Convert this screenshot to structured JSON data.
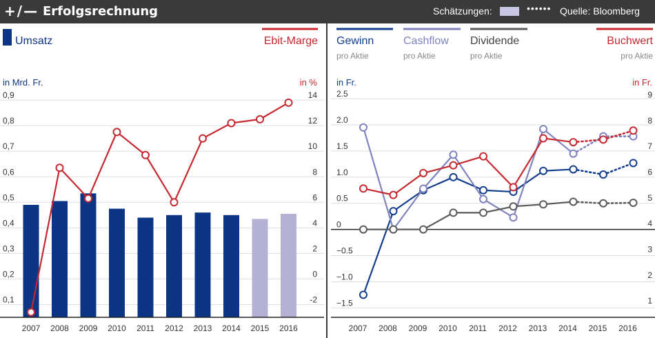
{
  "header": {
    "toggle_label": "+/—",
    "title": "Erfolgsrechnung",
    "estimates_label": "Schätzungen:",
    "estimates_dots": "••••••",
    "source": "Quelle: Bloomberg"
  },
  "colors": {
    "umsatz": "#0c3586",
    "umsatz_estimate": "#b4b2d4",
    "ebit": "#c5282f",
    "gewinn": "#123d8c",
    "cashflow": "#7f83bd",
    "dividende": "#5a5a5a",
    "buchwert": "#c5282f"
  },
  "chart_data": [
    {
      "type": "bar+line",
      "x": [
        "2007",
        "2008",
        "2009",
        "2010",
        "2011",
        "2012",
        "2013",
        "2014",
        "2015",
        "2016"
      ],
      "estimated_years": [
        "2015",
        "2016"
      ],
      "series": [
        {
          "name": "Umsatz",
          "axis": "left",
          "unit": "in Mrd. Fr.",
          "kind": "bar",
          "values": [
            0.49,
            0.505,
            0.535,
            0.475,
            0.44,
            0.45,
            0.46,
            0.45,
            0.435,
            0.455
          ]
        },
        {
          "name": "Ebit-Marge",
          "axis": "right",
          "unit": "in %",
          "kind": "line",
          "values": [
            -2.6,
            8.7,
            6.3,
            11.5,
            9.7,
            6.0,
            11.0,
            12.2,
            12.5,
            13.8
          ]
        }
      ],
      "left_axis": {
        "label": "in Mrd. Fr.",
        "ticks": [
          "0,1",
          "0,2",
          "0,3",
          "0,4",
          "0,5",
          "0,6",
          "0,7",
          "0,8",
          "0,9"
        ],
        "ylim": [
          0.05,
          0.93
        ]
      },
      "right_axis": {
        "label": "in %",
        "ticks": [
          "-2",
          "0",
          "2",
          "4",
          "6",
          "8",
          "10",
          "12",
          "14"
        ],
        "ylim": [
          -3.0,
          14.6
        ]
      },
      "legend": {
        "left": "Umsatz",
        "right": "Ebit-Marge"
      }
    },
    {
      "type": "line",
      "x": [
        "2007",
        "2008",
        "2009",
        "2010",
        "2011",
        "2012",
        "2013",
        "2014",
        "2015",
        "2016"
      ],
      "estimated_years": [
        "2015",
        "2016"
      ],
      "series": [
        {
          "name": "Gewinn",
          "sub": "pro Aktie",
          "axis": "left",
          "x": [
            "2007",
            "2008",
            "2009",
            "2010",
            "2011",
            "2012",
            "2013",
            "2014",
            "2015",
            "2016"
          ],
          "values": [
            -1.25,
            0.35,
            0.75,
            1.0,
            0.75,
            0.72,
            1.12,
            1.15,
            1.05,
            1.27
          ]
        },
        {
          "name": "Cashflow",
          "sub": "pro Aktie",
          "axis": "left",
          "x": [
            "2007",
            "2008",
            "2009",
            "2010",
            "2011",
            "2012",
            "2013",
            "2014",
            "2015",
            "2016"
          ],
          "values": [
            1.95,
            0.0,
            0.78,
            1.43,
            0.58,
            0.23,
            1.92,
            1.45,
            1.78,
            1.78
          ]
        },
        {
          "name": "Dividende",
          "sub": "pro Aktie",
          "axis": "left",
          "x": [
            "2007",
            "2008",
            "2009",
            "2010",
            "2011",
            "2012",
            "2013",
            "2014",
            "2015",
            "2016"
          ],
          "values": [
            0.0,
            0.0,
            0.0,
            0.32,
            0.32,
            0.44,
            0.48,
            0.53,
            0.5,
            0.51
          ]
        },
        {
          "name": "Buchwert",
          "sub": "pro Aktie",
          "axis": "right",
          "x": [
            "2007",
            "2008",
            "2009",
            "2010",
            "2011",
            "2012",
            "2013",
            "2014",
            "2015",
            "2016"
          ],
          "values": [
            5.55,
            5.3,
            6.15,
            6.45,
            6.8,
            5.6,
            7.5,
            7.35,
            7.45,
            7.8
          ]
        }
      ],
      "left_axis": {
        "label": "in Fr.",
        "ticks": [
          "−1.5",
          "−1.0",
          "−0.5",
          "0",
          "0.5",
          "1.0",
          "1.5",
          "2.0",
          "2.5"
        ],
        "ylim": [
          -1.68,
          2.62
        ]
      },
      "right_axis": {
        "label": "in Fr.",
        "ticks": [
          "1",
          "2",
          "3",
          "4",
          "5",
          "6",
          "7",
          "8",
          "9"
        ],
        "ylim": [
          0.55,
          9.28
        ]
      }
    }
  ]
}
